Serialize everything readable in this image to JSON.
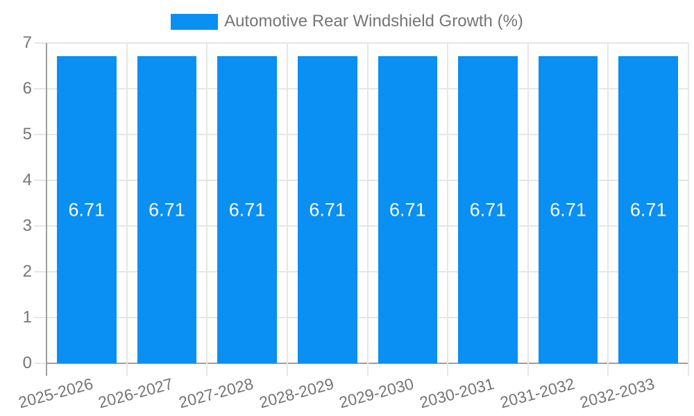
{
  "legend": {
    "label": "Automotive Rear Windshield Growth (%)"
  },
  "chart_data": {
    "type": "bar",
    "title": "Automotive Rear Windshield Growth (%)",
    "categories": [
      "2025-2026",
      "2026-2027",
      "2027-2028",
      "2028-2029",
      "2029-2030",
      "2030-2031",
      "2031-2032",
      "2032-2033"
    ],
    "series": [
      {
        "name": "Automotive Rear Windshield Growth (%)",
        "values": [
          6.71,
          6.71,
          6.71,
          6.71,
          6.71,
          6.71,
          6.71,
          6.71
        ],
        "value_labels": [
          "6.71",
          "6.71",
          "6.71",
          "6.71",
          "6.71",
          "6.71",
          "6.71",
          "6.71"
        ]
      }
    ],
    "xlabel": "",
    "ylabel": "",
    "ylim": [
      0,
      7
    ],
    "yticks": [
      0,
      1,
      2,
      3,
      4,
      5,
      6,
      7
    ],
    "grid": true,
    "legend_position": "top-center",
    "x_label_rotation_deg": -15,
    "colors": {
      "bar": "#0a8ff2",
      "bar_label_text": "#ffffff",
      "axis_text": "#757575",
      "gridline": "#e6e6e6",
      "axis_line": "#9e9e9e",
      "background": "#ffffff"
    }
  }
}
